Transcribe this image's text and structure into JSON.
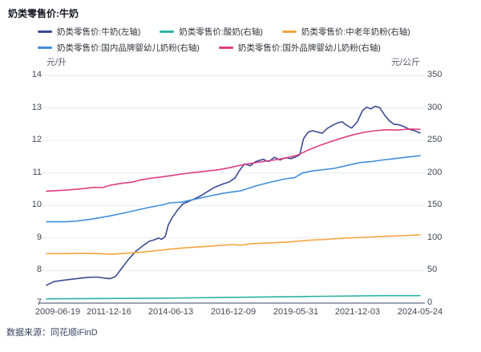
{
  "title": "奶类零售价:牛奶",
  "source_note": "数据来源：同花顺iFinD",
  "legend": [
    {
      "label": "奶类零售价:牛奶(左轴)",
      "color": "#3c4b90"
    },
    {
      "label": "奶类零售价:酸奶(右轴)",
      "color": "#2bb3a3"
    },
    {
      "label": "奶类零售价:中老年奶粉(右轴)",
      "color": "#f5a63f"
    },
    {
      "label": "奶类零售价:国内品牌婴幼儿奶粉(右轴)",
      "color": "#418fd9"
    },
    {
      "label": "奶类零售价:国外品牌婴幼儿奶粉(右轴)",
      "color": "#e03c80"
    }
  ],
  "axes": {
    "left_unit": "元/升",
    "right_unit": "元/公斤",
    "left_ticks": [
      14,
      13,
      12,
      11,
      10,
      9,
      8,
      7
    ],
    "right_ticks": [
      350,
      300,
      250,
      200,
      150,
      100,
      50,
      0
    ],
    "x_ticks": [
      "2009-06-19",
      "2011-12-16",
      "2014-06-13",
      "2016-12-09",
      "2019-05-31",
      "2021-12-03",
      "2024-05-24"
    ]
  },
  "chart_data": {
    "type": "line",
    "title": "奶类零售价:牛奶",
    "x_range": [
      "2009-06-19",
      "2024-05-24"
    ],
    "left_ylabel": "元/升",
    "right_ylabel": "元/公斤",
    "left_ylim": [
      7,
      14
    ],
    "right_ylim": [
      0,
      350
    ],
    "grid": true,
    "legend_position": "top",
    "series": [
      {
        "name": "奶类零售价:牛奶(左轴)",
        "axis": "left",
        "color": "#3c4b90",
        "points": [
          [
            0,
            7.55
          ],
          [
            0.02,
            7.66
          ],
          [
            0.05,
            7.71
          ],
          [
            0.08,
            7.75
          ],
          [
            0.11,
            7.79
          ],
          [
            0.135,
            7.8
          ],
          [
            0.155,
            7.77
          ],
          [
            0.17,
            7.75
          ],
          [
            0.185,
            7.82
          ],
          [
            0.2,
            8.05
          ],
          [
            0.22,
            8.35
          ],
          [
            0.24,
            8.6
          ],
          [
            0.26,
            8.78
          ],
          [
            0.275,
            8.9
          ],
          [
            0.29,
            8.95
          ],
          [
            0.3,
            9.0
          ],
          [
            0.308,
            8.96
          ],
          [
            0.318,
            9.05
          ],
          [
            0.326,
            9.4
          ],
          [
            0.336,
            9.62
          ],
          [
            0.35,
            9.85
          ],
          [
            0.365,
            10.05
          ],
          [
            0.38,
            10.12
          ],
          [
            0.395,
            10.2
          ],
          [
            0.41,
            10.28
          ],
          [
            0.43,
            10.42
          ],
          [
            0.45,
            10.56
          ],
          [
            0.47,
            10.65
          ],
          [
            0.49,
            10.73
          ],
          [
            0.505,
            10.85
          ],
          [
            0.515,
            11.05
          ],
          [
            0.53,
            11.28
          ],
          [
            0.545,
            11.22
          ],
          [
            0.56,
            11.35
          ],
          [
            0.58,
            11.42
          ],
          [
            0.595,
            11.35
          ],
          [
            0.61,
            11.48
          ],
          [
            0.625,
            11.4
          ],
          [
            0.64,
            11.47
          ],
          [
            0.655,
            11.44
          ],
          [
            0.668,
            11.5
          ],
          [
            0.678,
            11.56
          ],
          [
            0.688,
            12.05
          ],
          [
            0.7,
            12.25
          ],
          [
            0.712,
            12.3
          ],
          [
            0.725,
            12.26
          ],
          [
            0.738,
            12.22
          ],
          [
            0.752,
            12.37
          ],
          [
            0.768,
            12.48
          ],
          [
            0.782,
            12.55
          ],
          [
            0.792,
            12.57
          ],
          [
            0.803,
            12.47
          ],
          [
            0.817,
            12.38
          ],
          [
            0.832,
            12.57
          ],
          [
            0.846,
            12.92
          ],
          [
            0.857,
            13.02
          ],
          [
            0.868,
            12.97
          ],
          [
            0.88,
            13.05
          ],
          [
            0.892,
            13.01
          ],
          [
            0.905,
            12.78
          ],
          [
            0.918,
            12.6
          ],
          [
            0.93,
            12.5
          ],
          [
            0.945,
            12.48
          ],
          [
            0.958,
            12.42
          ],
          [
            0.972,
            12.34
          ],
          [
            0.985,
            12.3
          ],
          [
            1,
            12.23
          ]
        ]
      },
      {
        "name": "奶类零售价:酸奶(右轴)",
        "axis": "right",
        "color": "#2bb3a3",
        "points": [
          [
            0,
            6.5
          ],
          [
            0.15,
            7
          ],
          [
            0.3,
            7.5
          ],
          [
            0.45,
            8.5
          ],
          [
            0.6,
            9.5
          ],
          [
            0.75,
            10.5
          ],
          [
            0.9,
            11.5
          ],
          [
            1,
            11.5
          ]
        ]
      },
      {
        "name": "奶类零售价:中老年奶粉(右轴)",
        "axis": "right",
        "color": "#f5a63f",
        "points": [
          [
            0,
            76
          ],
          [
            0.05,
            76
          ],
          [
            0.1,
            76.5
          ],
          [
            0.14,
            76
          ],
          [
            0.17,
            75
          ],
          [
            0.2,
            76
          ],
          [
            0.25,
            78
          ],
          [
            0.3,
            81
          ],
          [
            0.35,
            84
          ],
          [
            0.4,
            86
          ],
          [
            0.45,
            88
          ],
          [
            0.5,
            90
          ],
          [
            0.52,
            89
          ],
          [
            0.55,
            91.5
          ],
          [
            0.6,
            92.5
          ],
          [
            0.65,
            94
          ],
          [
            0.7,
            96.5
          ],
          [
            0.75,
            98
          ],
          [
            0.8,
            100
          ],
          [
            0.85,
            101
          ],
          [
            0.9,
            102.5
          ],
          [
            0.95,
            103.5
          ],
          [
            1,
            105
          ]
        ]
      },
      {
        "name": "奶类零售价:国内品牌婴幼儿奶粉(右轴)",
        "axis": "right",
        "color": "#418fd9",
        "points": [
          [
            0,
            125
          ],
          [
            0.05,
            125
          ],
          [
            0.08,
            126
          ],
          [
            0.12,
            129
          ],
          [
            0.17,
            134
          ],
          [
            0.22,
            140
          ],
          [
            0.27,
            146.5
          ],
          [
            0.31,
            151
          ],
          [
            0.33,
            154
          ],
          [
            0.36,
            155
          ],
          [
            0.4,
            160
          ],
          [
            0.44,
            165
          ],
          [
            0.47,
            168.5
          ],
          [
            0.5,
            171
          ],
          [
            0.52,
            172.5
          ],
          [
            0.56,
            180
          ],
          [
            0.6,
            186
          ],
          [
            0.64,
            191
          ],
          [
            0.665,
            193
          ],
          [
            0.685,
            200
          ],
          [
            0.71,
            203
          ],
          [
            0.74,
            205
          ],
          [
            0.77,
            207
          ],
          [
            0.8,
            211
          ],
          [
            0.84,
            216
          ],
          [
            0.87,
            217.5
          ],
          [
            0.9,
            220
          ],
          [
            0.93,
            222
          ],
          [
            0.96,
            224
          ],
          [
            1,
            226.5
          ]
        ]
      },
      {
        "name": "奶类零售价:国外品牌婴幼儿奶粉(右轴)",
        "axis": "right",
        "color": "#e03c80",
        "points": [
          [
            0,
            172
          ],
          [
            0.05,
            173.5
          ],
          [
            0.1,
            176
          ],
          [
            0.13,
            178
          ],
          [
            0.15,
            177.5
          ],
          [
            0.17,
            181
          ],
          [
            0.2,
            184
          ],
          [
            0.23,
            186
          ],
          [
            0.25,
            189
          ],
          [
            0.28,
            192
          ],
          [
            0.31,
            194
          ],
          [
            0.34,
            196.5
          ],
          [
            0.37,
            199
          ],
          [
            0.4,
            201
          ],
          [
            0.43,
            203
          ],
          [
            0.46,
            205
          ],
          [
            0.49,
            208
          ],
          [
            0.52,
            212
          ],
          [
            0.55,
            215
          ],
          [
            0.58,
            217.5
          ],
          [
            0.61,
            220
          ],
          [
            0.64,
            223
          ],
          [
            0.67,
            227
          ],
          [
            0.7,
            235
          ],
          [
            0.73,
            242
          ],
          [
            0.76,
            248
          ],
          [
            0.79,
            253.5
          ],
          [
            0.82,
            258.5
          ],
          [
            0.85,
            262.5
          ],
          [
            0.88,
            265
          ],
          [
            0.91,
            266.5
          ],
          [
            0.94,
            266
          ],
          [
            0.97,
            267.5
          ],
          [
            1,
            267
          ]
        ]
      }
    ]
  }
}
